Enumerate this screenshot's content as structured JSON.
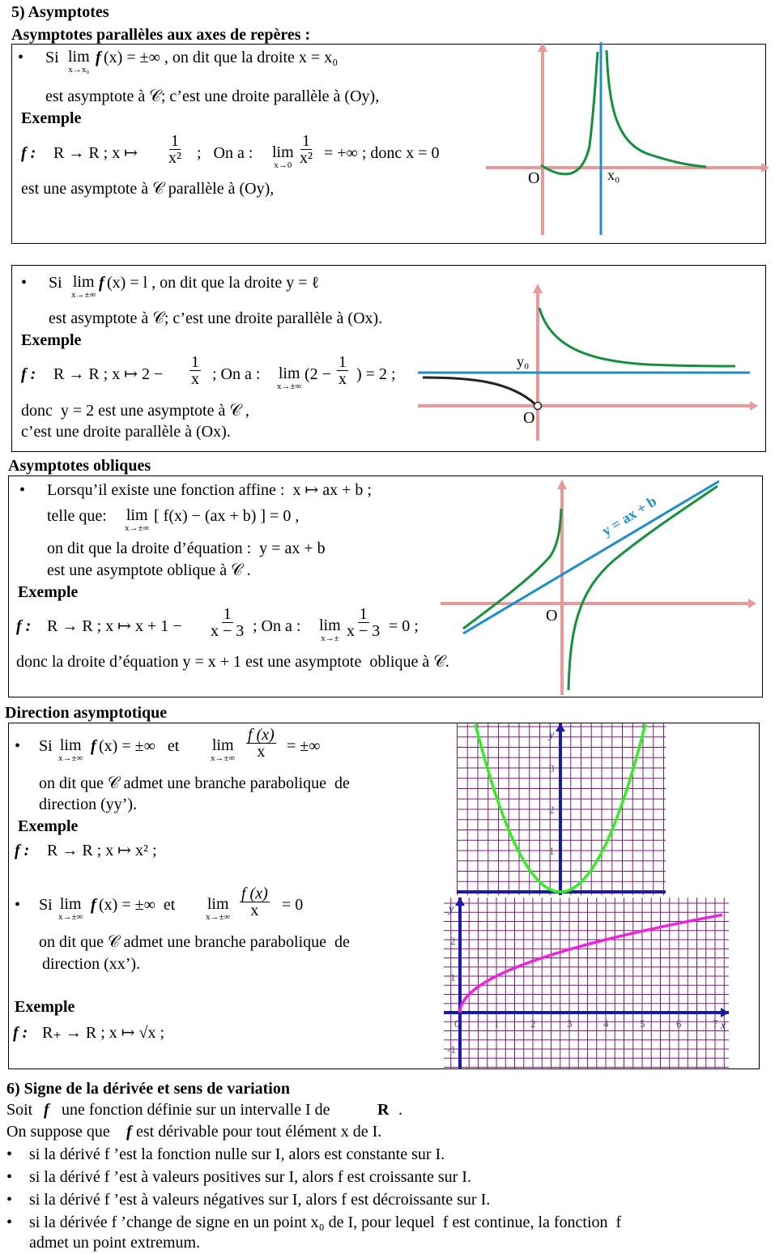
{
  "section5": {
    "title": "5) Asymptotes",
    "subtitle_parallel": "Asymptotes parallèles aux axes de repères :",
    "subtitle_oblique": "Asymptotes obliques",
    "subtitle_direction": "Direction asymptotique"
  },
  "box1": {
    "si": "Si",
    "lim": "lim",
    "lim_sub": "x→x₀",
    "f": "f",
    "cond": "(x) = ±∞ , on dit que la droite x = x₀",
    "line2": "est asymptote à 𝒞; c’est une droite parallèle à (Oy),",
    "exemple": "Exemple",
    "ex_f": "f :",
    "ex_map": "R → R ; x ↦",
    "ex_num": "1",
    "ex_den": "x²",
    "ex_ona": " ;   On a :",
    "ex_lim": "lim",
    "ex_lim_sub": "x→0",
    "ex_res": "= +∞ ; donc x = 0",
    "line_last": "est une asymptote à 𝒞 parallèle à (Oy),",
    "graph_O": "O",
    "graph_x0": "x₀"
  },
  "box2": {
    "si": "Si",
    "lim": "lim",
    "lim_sub": "x→±∞",
    "f": "f",
    "cond": "(x) = l , on dit que la droite y = ℓ",
    "line2": "est asymptote à 𝒞; c’est une droite parallèle à (Ox).",
    "exemple": "Exemple",
    "ex_f": "f :",
    "ex_map": "R → R ; x ↦ 2 −",
    "ex_num": "1",
    "ex_den": "x",
    "ex_ona": "; On a :",
    "ex_lim": "lim",
    "ex_lim_sub": "x→±∞",
    "ex_mid": "(2 −",
    "ex_res": ") = 2 ;",
    "line_donc": "donc  y = 2 est une asymptote à 𝒞 ,",
    "line_last": "c’est une droite parallèle à (Ox).",
    "graph_O": "O",
    "graph_y0": "y₀"
  },
  "box3": {
    "line1": "Lorsqu’il existe une fonction affine :  x ↦ ax + b ;",
    "telle": "telle que:",
    "lim": "lim",
    "lim_sub": "x→±∞",
    "f": "f",
    "expr": "[ f(x) − (ax + b) ] = 0 ,",
    "line3": "on dit que la droite d’équation :  y = ax + b",
    "line4": "est une asymptote oblique à 𝒞 .",
    "exemple": "Exemple",
    "ex_f": "f :",
    "ex_map": "R → R ; x ↦ x + 1 −",
    "ex_num": "1",
    "ex_den": "x − 3",
    "ex_ona": "; On a :",
    "ex_lim": "lim",
    "ex_lim_sub": "x→±",
    "ex_res": "= 0 ;",
    "line_last": "donc la droite d’équation y = x + 1 est une asymptote  oblique à 𝒞.",
    "graph_O": "O",
    "graph_label": "y = ax + b"
  },
  "box4": {
    "si": "Si",
    "lim": "lim",
    "lim_sub": "x→±∞",
    "cond1": "(x) = ±∞   et",
    "frac_num": "f (x)",
    "frac_den": "x",
    "res1": "= ±∞",
    "line2": "on dit que 𝒞 admet une branche parabolique  de",
    "line3": "direction (yy’).",
    "exemple": "Exemple",
    "ex1": "R → R ; x ↦ x² ;",
    "cond2": "(x) = ±∞  et",
    "res2": "= 0",
    "line5": "on dit que 𝒞 admet une branche parabolique  de",
    "line6": "direction (xx’).",
    "ex2": "R₊ → R ; x ↦ √x ;",
    "f": "f",
    "ex_f": "f :",
    "graph1_y": "y",
    "graph1_ticks": [
      "3",
      "2",
      "1"
    ],
    "graph2_y": "y",
    "graph2_x": "x",
    "graph2_yticks": [
      "2",
      "1",
      "-1"
    ],
    "graph2_xticks": [
      "0",
      "1",
      "2",
      "3",
      "4",
      "5",
      "6",
      "7"
    ]
  },
  "section6": {
    "title": "6) Signe de la dérivée et sens de variation",
    "soit": "Soit",
    "soit_rest": "une fonction définie sur un intervalle I de",
    "R": "R",
    "dot": ".",
    "line2": "On suppose que",
    "line2b": "est dérivable pour tout élément x de I.",
    "bullets": [
      "si la dérivé f ’est la fonction nulle sur I, alors est constante sur I.",
      "si la dérivé f ’est à valeurs positives sur I, alors f est croissante sur I.",
      "si la dérivé f ’est à valeurs négatives sur I, alors f est décroissante sur I.",
      "si la dérivée f ’change de signe en un point x₀ de I, pour lequel  f est continue, la fonction  f",
      "admet un point extremum."
    ]
  },
  "colors": {
    "axis": "#e8999b",
    "curve_green": "#15903c",
    "line_blue": "#1b8ed1",
    "curve_black": "#222222",
    "grid_purple": "#7a1a78",
    "axis_blue": "#1a1aa6",
    "parabola": "#33ee22",
    "sqrt_curve": "#ee22dd"
  }
}
